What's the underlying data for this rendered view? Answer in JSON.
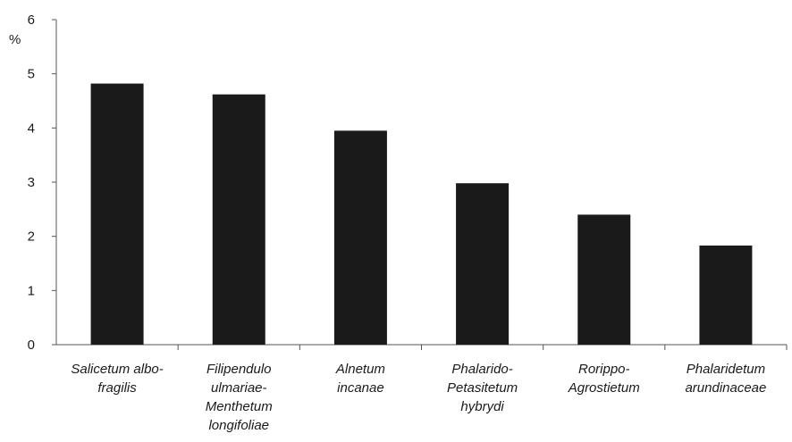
{
  "chart_data": {
    "type": "bar",
    "ylabel": "%",
    "ylim": [
      0,
      6
    ],
    "yticks": [
      "0",
      "1",
      "2",
      "3",
      "4",
      "5",
      "6"
    ],
    "categories": [
      [
        "Salicetum albo-",
        "fragilis"
      ],
      [
        "Filipendulo",
        "ulmariae-",
        "Menthetum",
        "longifoliae"
      ],
      [
        "Alnetum",
        "incanae"
      ],
      [
        "Phalarido-",
        "Petasitetum",
        "hybrydi"
      ],
      [
        "Rorippo-",
        "Agrostietum"
      ],
      [
        "Phalaridetum",
        "arundinaceae"
      ]
    ],
    "values": [
      4.82,
      4.62,
      3.95,
      2.98,
      2.4,
      1.83
    ],
    "grid": false,
    "bar_color": "#1a1a1a",
    "axis_color": "#555555"
  }
}
